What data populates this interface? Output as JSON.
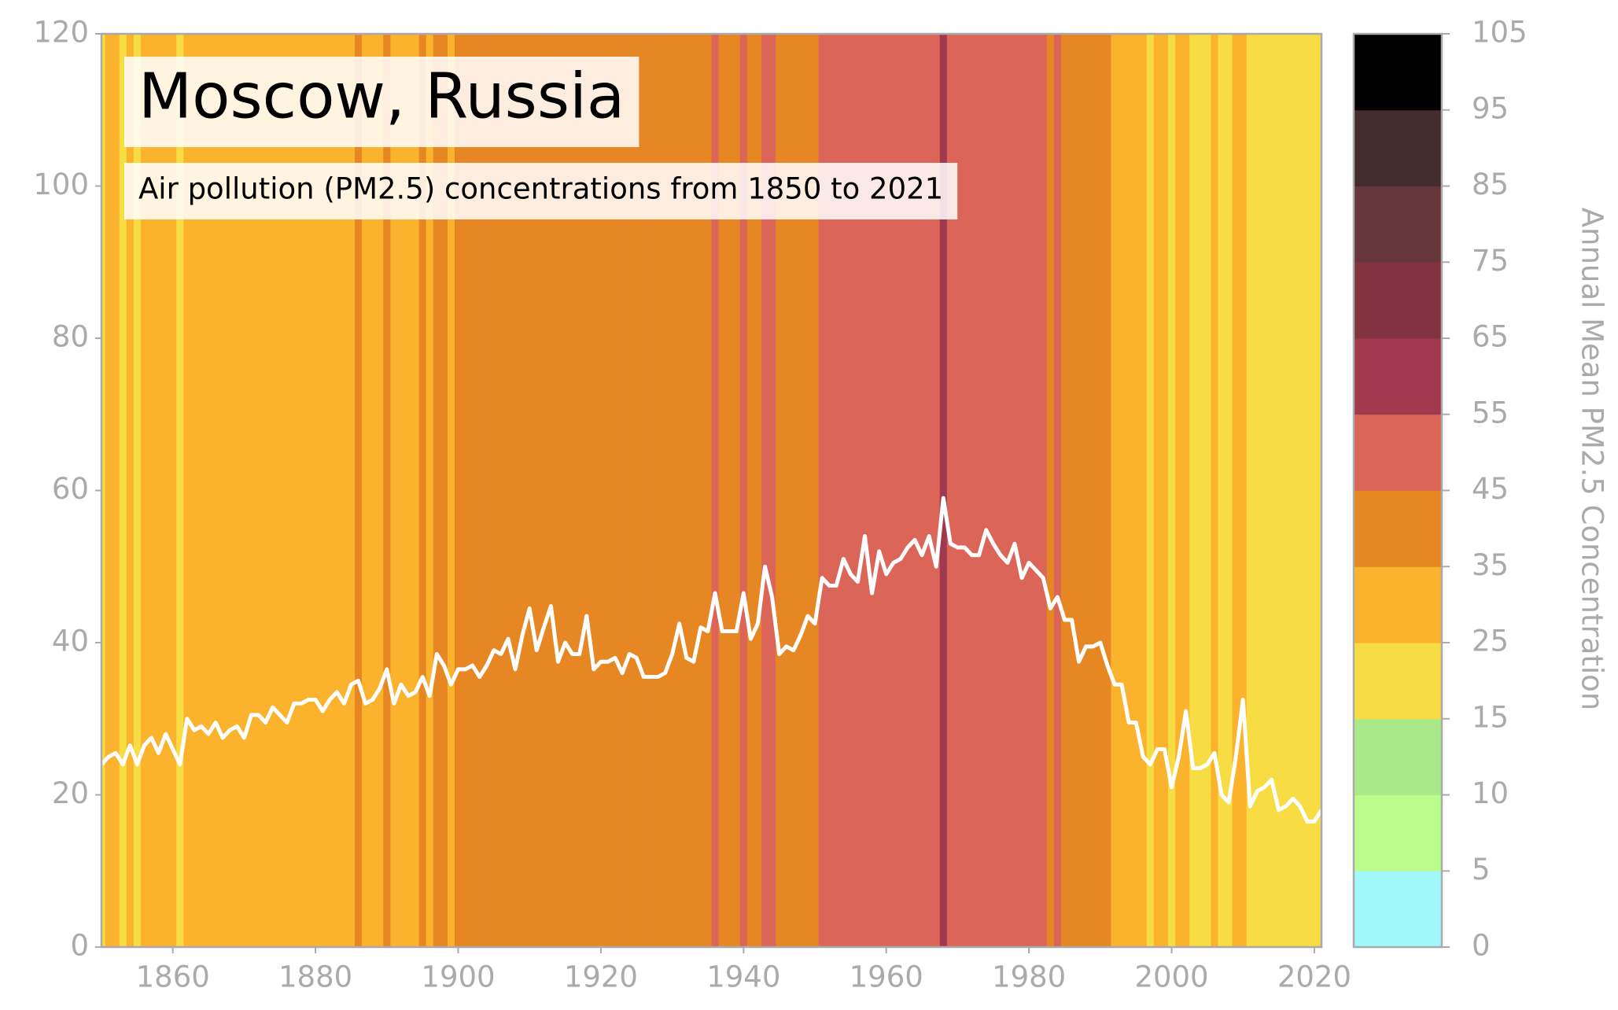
{
  "chart_data": {
    "type": "line",
    "title": "Moscow, Russia",
    "subtitle": "Air pollution (PM2.5) concentrations from 1850 to 2021",
    "x": [
      1850,
      1851,
      1852,
      1853,
      1854,
      1855,
      1856,
      1857,
      1858,
      1859,
      1860,
      1861,
      1862,
      1863,
      1864,
      1865,
      1866,
      1867,
      1868,
      1869,
      1870,
      1871,
      1872,
      1873,
      1874,
      1875,
      1876,
      1877,
      1878,
      1879,
      1880,
      1881,
      1882,
      1883,
      1884,
      1885,
      1886,
      1887,
      1888,
      1889,
      1890,
      1891,
      1892,
      1893,
      1894,
      1895,
      1896,
      1897,
      1898,
      1899,
      1900,
      1901,
      1902,
      1903,
      1904,
      1905,
      1906,
      1907,
      1908,
      1909,
      1910,
      1911,
      1912,
      1913,
      1914,
      1915,
      1916,
      1917,
      1918,
      1919,
      1920,
      1921,
      1922,
      1923,
      1924,
      1925,
      1926,
      1927,
      1928,
      1929,
      1930,
      1931,
      1932,
      1933,
      1934,
      1935,
      1936,
      1937,
      1938,
      1939,
      1940,
      1941,
      1942,
      1943,
      1944,
      1945,
      1946,
      1947,
      1948,
      1949,
      1950,
      1951,
      1952,
      1953,
      1954,
      1955,
      1956,
      1957,
      1958,
      1959,
      1960,
      1961,
      1962,
      1963,
      1964,
      1965,
      1966,
      1967,
      1968,
      1969,
      1970,
      1971,
      1972,
      1973,
      1974,
      1975,
      1976,
      1977,
      1978,
      1979,
      1980,
      1981,
      1982,
      1983,
      1984,
      1985,
      1986,
      1987,
      1988,
      1989,
      1990,
      1991,
      1992,
      1993,
      1994,
      1995,
      1996,
      1997,
      1998,
      1999,
      2000,
      2001,
      2002,
      2003,
      2004,
      2005,
      2006,
      2007,
      2008,
      2009,
      2010,
      2011,
      2012,
      2013,
      2014,
      2015,
      2016,
      2017,
      2018,
      2019,
      2020,
      2021
    ],
    "values": [
      24,
      25,
      25.5,
      24,
      26.5,
      24,
      26.5,
      27.5,
      25.5,
      28,
      26,
      24,
      30,
      28.5,
      29,
      28,
      29.5,
      27.5,
      28.5,
      29,
      27.5,
      30.5,
      30.5,
      29.5,
      31.5,
      30.5,
      29.5,
      32,
      32,
      32.5,
      32.5,
      31,
      32.5,
      33.5,
      32,
      34.5,
      35,
      32,
      32.5,
      34,
      36.5,
      32,
      34.5,
      33,
      33.5,
      35.5,
      33,
      38.5,
      37,
      34.5,
      36.5,
      36.5,
      37,
      35.5,
      37,
      39,
      38.5,
      40.5,
      36.5,
      41,
      44.5,
      39,
      42,
      44.8,
      37.5,
      40,
      38.5,
      38.5,
      43.5,
      36.5,
      37.5,
      37.5,
      38,
      36,
      38.5,
      38,
      35.5,
      35.5,
      35.5,
      36,
      38.5,
      42.5,
      38,
      37.5,
      42,
      41.5,
      46.5,
      41.5,
      41.5,
      41.5,
      46.5,
      40.5,
      42.5,
      50,
      46,
      38.5,
      39.5,
      39,
      41,
      43.5,
      42.5,
      48.5,
      47.5,
      47.5,
      51,
      49,
      48,
      54,
      46.5,
      52,
      49,
      50.5,
      51,
      52.5,
      53.5,
      51.5,
      54,
      50,
      59,
      53,
      52.5,
      52.5,
      51.5,
      51.5,
      54.8,
      53,
      51.5,
      50.5,
      53,
      48.5,
      50.5,
      49.5,
      48.5,
      44.5,
      46,
      43,
      43,
      37.5,
      39.5,
      39.5,
      40,
      37,
      34.5,
      34.5,
      29.5,
      29.5,
      25,
      24,
      26,
      26,
      21,
      25,
      31,
      23.5,
      23.5,
      24,
      25.5,
      20,
      19,
      25,
      32.5,
      18.5,
      20.5,
      21,
      22,
      18,
      18.5,
      19.5,
      18.5,
      16.5,
      16.5,
      18
    ],
    "color": "#ffffff",
    "xlim": [
      1850,
      2021
    ],
    "xticks": [
      1860,
      1880,
      1900,
      1920,
      1940,
      1960,
      1980,
      2000,
      2020
    ],
    "ylim": [
      0,
      120
    ],
    "yticks": [
      0,
      20,
      40,
      60,
      80,
      100,
      120
    ],
    "colorbar": {
      "label": "Annual Mean PM2.5 Concentration",
      "bounds": [
        0,
        5,
        10,
        15,
        25,
        35,
        45,
        55,
        65,
        75,
        85,
        95,
        105
      ],
      "colors": [
        "#a2f9fd",
        "#bdfb8d",
        "#a9e98a",
        "#f7dd43",
        "#fbb22c",
        "#e78724",
        "#db6558",
        "#a0394e",
        "#833340",
        "#65373a",
        "#432c2d",
        "#000000"
      ]
    }
  }
}
